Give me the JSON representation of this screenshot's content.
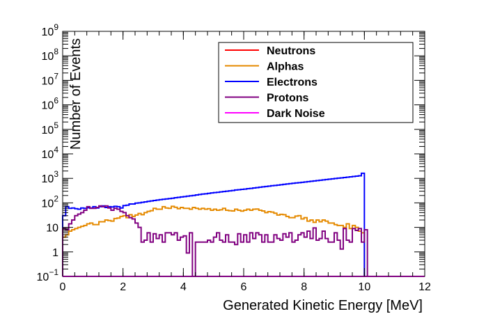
{
  "chart_data": {
    "type": "line",
    "style": "step-histogram",
    "xlabel": "Generated Kinetic Energy [MeV]",
    "ylabel": "Number of Events",
    "xlim": [
      0,
      12
    ],
    "ylim": [
      0.1,
      1000000000
    ],
    "yscale": "log",
    "grid": false,
    "legend_position": "top-right",
    "x_ticks": [
      "0",
      "2",
      "4",
      "6",
      "8",
      "10",
      "12"
    ],
    "y_ticks": [
      {
        "base": "10",
        "exp": "−1",
        "value": 0.1
      },
      {
        "base": "1",
        "exp": "",
        "value": 1
      },
      {
        "base": "10",
        "exp": "",
        "value": 10
      },
      {
        "base": "10",
        "exp": "2",
        "value": 100
      },
      {
        "base": "10",
        "exp": "3",
        "value": 1000
      },
      {
        "base": "10",
        "exp": "4",
        "value": 10000
      },
      {
        "base": "10",
        "exp": "5",
        "value": 100000
      },
      {
        "base": "10",
        "exp": "6",
        "value": 1000000
      },
      {
        "base": "10",
        "exp": "7",
        "value": 10000000
      },
      {
        "base": "10",
        "exp": "8",
        "value": 100000000
      },
      {
        "base": "10",
        "exp": "9",
        "value": 1000000000
      }
    ],
    "bin_width": 0.1,
    "series": [
      {
        "name": "Neutrons",
        "color": "#ff0000",
        "x_start": 0,
        "values": [
          0.1,
          0.1
        ]
      },
      {
        "name": "Alphas",
        "color": "#e58a00",
        "x_start": 0,
        "values": [
          4,
          5,
          7,
          8,
          9,
          10,
          11,
          12,
          14,
          15,
          13,
          13,
          17,
          17,
          20,
          19,
          18,
          23,
          24,
          28,
          30,
          25,
          33,
          28,
          32,
          37,
          33,
          40,
          45,
          48,
          60,
          55,
          55,
          70,
          62,
          60,
          72,
          66,
          58,
          65,
          60,
          60,
          55,
          65,
          60,
          55,
          60,
          55,
          58,
          50,
          55,
          50,
          52,
          60,
          50,
          48,
          47,
          55,
          50,
          46,
          50,
          55,
          50,
          55,
          56,
          50,
          47,
          40,
          44,
          42,
          38,
          32,
          34,
          33,
          28,
          25,
          25,
          29,
          30,
          22,
          25,
          18,
          20,
          16,
          20,
          17,
          20,
          18,
          15,
          15,
          13,
          12,
          12,
          10,
          14,
          9,
          12,
          10,
          7,
          6
        ]
      },
      {
        "name": "Electrons",
        "color": "#0000ff",
        "x_start": 0,
        "values": [
          30,
          70,
          60,
          62,
          58,
          55,
          62,
          60,
          63,
          62,
          70,
          62,
          70,
          75,
          65,
          70,
          68,
          72,
          70,
          62,
          78,
          80,
          90,
          90,
          98,
          100,
          105,
          110,
          115,
          120,
          125,
          130,
          135,
          140,
          145,
          150,
          155,
          162,
          168,
          175,
          180,
          188,
          195,
          200,
          210,
          220,
          228,
          235,
          245,
          255,
          262,
          270,
          280,
          290,
          300,
          310,
          320,
          335,
          345,
          355,
          365,
          380,
          390,
          405,
          420,
          435,
          450,
          465,
          480,
          500,
          515,
          530,
          550,
          570,
          590,
          610,
          630,
          650,
          670,
          690,
          710,
          735,
          760,
          785,
          810,
          840,
          865,
          895,
          925,
          955,
          985,
          1020,
          1050,
          1085,
          1120,
          1155,
          1195,
          1230,
          1270,
          1620
        ]
      },
      {
        "name": "Protons",
        "color": "#800080",
        "x_start": 0,
        "values": [
          9,
          8,
          14,
          20,
          30,
          35,
          40,
          50,
          70,
          60,
          60,
          65,
          75,
          70,
          75,
          62,
          50,
          60,
          55,
          45,
          40,
          30,
          25,
          22,
          15,
          10,
          2.5,
          3,
          6,
          2.5,
          5.5,
          3.5,
          5,
          2.5,
          6,
          6,
          5,
          6,
          3,
          4,
          4.5,
          0.9,
          6,
          0.1,
          2.5,
          2.5,
          2.5,
          2.5,
          3,
          2.5,
          4,
          6,
          3,
          2.5,
          5,
          2.5,
          2.5,
          2,
          5.5,
          2.5,
          5,
          2.5,
          6,
          3.5,
          6,
          5,
          2.5,
          5,
          2.5,
          2.5,
          5,
          3.5,
          3,
          5.5,
          4,
          6,
          2.5,
          3,
          5,
          6,
          4,
          7,
          3.5,
          9.5,
          3,
          3.5,
          7,
          3.5,
          2.5,
          2.5,
          6,
          3,
          1.3,
          9,
          3,
          2.5,
          9,
          7.5,
          9,
          2.5,
          8
        ]
      },
      {
        "name": "Dark Noise",
        "color": "#ff00ff",
        "x_start": 0,
        "values": [
          0.1,
          0.1
        ]
      }
    ]
  }
}
